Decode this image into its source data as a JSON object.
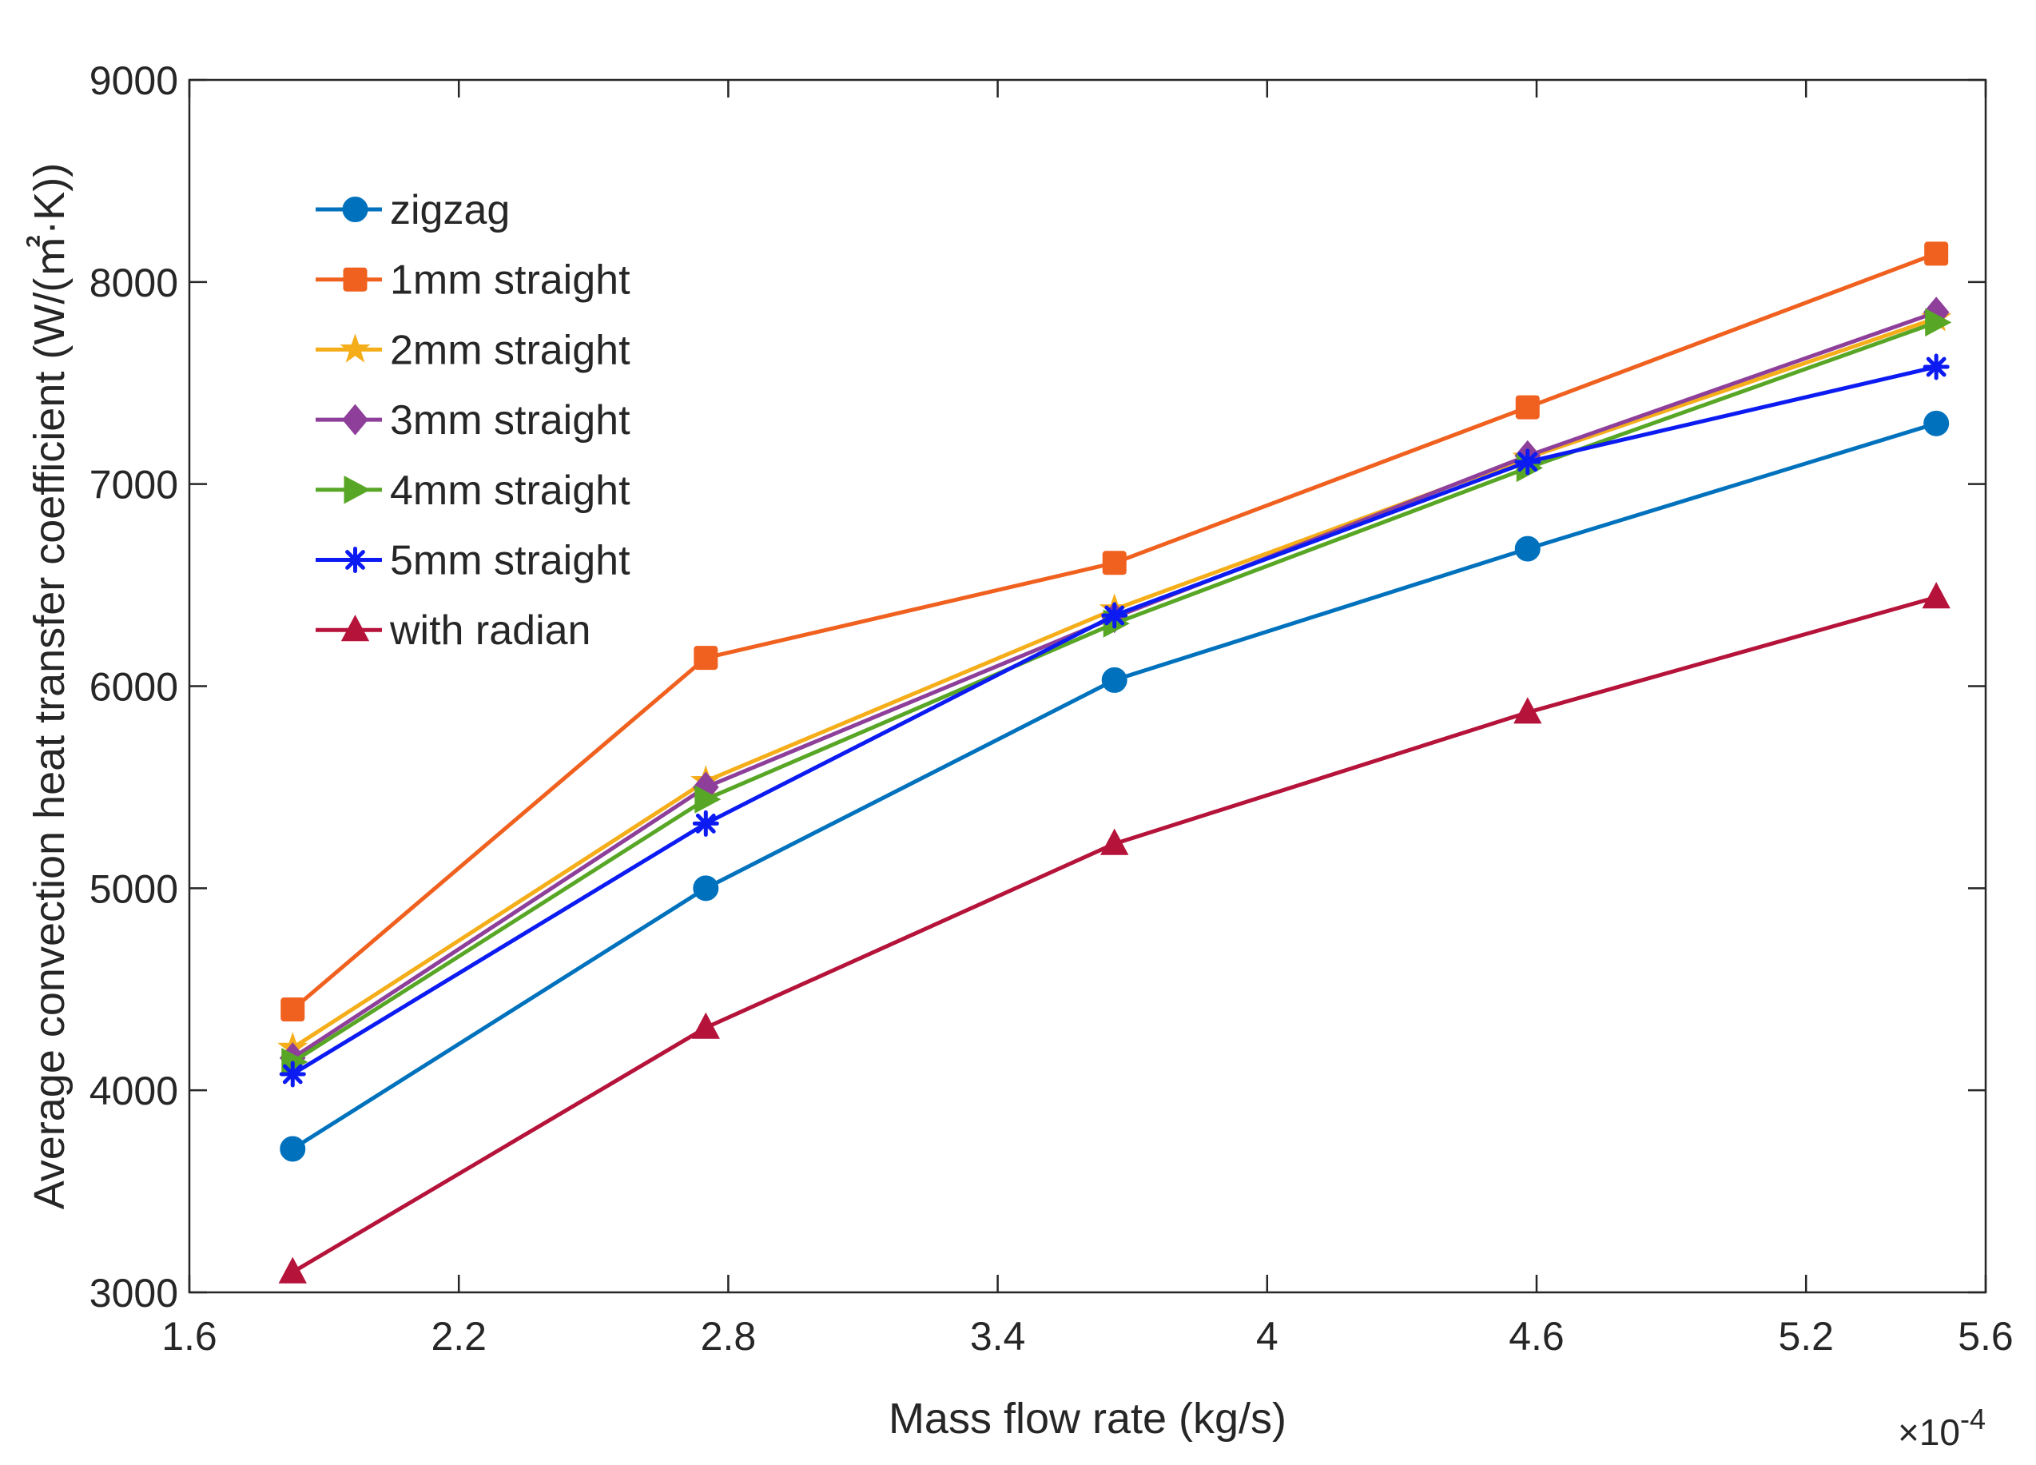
{
  "chart_data": {
    "type": "line",
    "title": "",
    "xlabel": "Mass flow rate (kg/s)",
    "ylabel": "Average convection heat transfer coefficient (W/(㎡·K))",
    "x_exponent_label": "×10",
    "x_exponent_power": "-4",
    "xlim": [
      1.6,
      5.6
    ],
    "ylim": [
      3000,
      9000
    ],
    "xticks": [
      "1.6",
      "2.2",
      "2.8",
      "3.4",
      "4",
      "4.6",
      "5.2",
      "5.6"
    ],
    "xtick_values": [
      1.6,
      2.2,
      2.8,
      3.4,
      4.0,
      4.6,
      5.2,
      5.6
    ],
    "yticks": [
      "3000",
      "4000",
      "5000",
      "6000",
      "7000",
      "8000",
      "9000"
    ],
    "ytick_values": [
      3000,
      4000,
      5000,
      6000,
      7000,
      8000,
      9000
    ],
    "grid": false,
    "legend_position": "top-left",
    "x": [
      1.83,
      2.75,
      3.66,
      4.58,
      5.49
    ],
    "series": [
      {
        "name": "zigzag",
        "color": "#0072BD",
        "marker": "circle",
        "values": [
          3710,
          5000,
          6030,
          6680,
          7300
        ]
      },
      {
        "name": "1mm straight",
        "color": "#F0601E",
        "marker": "square",
        "values": [
          4400,
          6140,
          6610,
          7380,
          8140
        ]
      },
      {
        "name": "2mm straight",
        "color": "#F5AE1A",
        "marker": "star",
        "values": [
          4210,
          5530,
          6380,
          7130,
          7820
        ]
      },
      {
        "name": "3mm straight",
        "color": "#8E3F9A",
        "marker": "diamond",
        "values": [
          4160,
          5500,
          6340,
          7140,
          7850
        ]
      },
      {
        "name": "4mm straight",
        "color": "#58A625",
        "marker": "triangle-right",
        "values": [
          4140,
          5440,
          6310,
          7080,
          7800
        ]
      },
      {
        "name": "5mm straight",
        "color": "#0B1BF2",
        "marker": "asterisk",
        "values": [
          4080,
          5320,
          6350,
          7110,
          7580
        ]
      },
      {
        "name": "with radian",
        "color": "#B5133A",
        "marker": "triangle-up",
        "values": [
          3100,
          4310,
          5220,
          5870,
          6440
        ]
      }
    ]
  }
}
